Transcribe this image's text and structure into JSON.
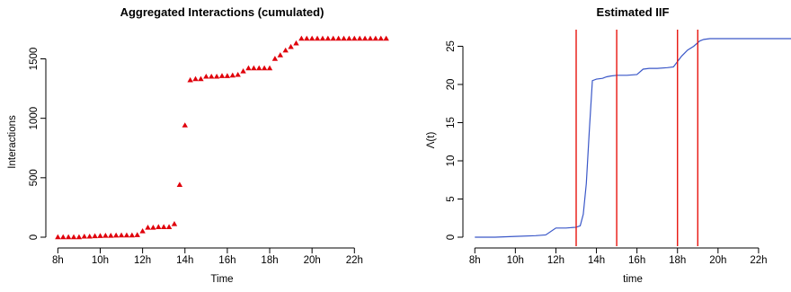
{
  "chart_data": [
    {
      "type": "scatter",
      "title": "Aggregated Interactions (cumulated)",
      "xlabel": "Time",
      "ylabel": "Interactions",
      "xlim": [
        7.9,
        23.6
      ],
      "ylim": [
        0,
        1670
      ],
      "x_ticks": [
        {
          "value": 8,
          "label": "8h"
        },
        {
          "value": 10,
          "label": "10h"
        },
        {
          "value": 12,
          "label": "12h"
        },
        {
          "value": 14,
          "label": "14h"
        },
        {
          "value": 16,
          "label": "16h"
        },
        {
          "value": 18,
          "label": "18h"
        },
        {
          "value": 20,
          "label": "20h"
        },
        {
          "value": 22,
          "label": "22h"
        }
      ],
      "y_ticks": [
        {
          "value": 0,
          "label": "0"
        },
        {
          "value": 500,
          "label": "500"
        },
        {
          "value": 1000,
          "label": "1000"
        },
        {
          "value": 1500,
          "label": "1500"
        }
      ],
      "marker_color": "#e0000b",
      "series": [
        {
          "x": [
            8.0,
            8.25,
            8.5,
            8.75,
            9.0,
            9.25,
            9.5,
            9.75,
            10.0,
            10.25,
            10.5,
            10.75,
            11.0,
            11.25,
            11.5,
            11.75,
            12.0,
            12.25,
            12.5,
            12.75,
            13.0,
            13.25,
            13.5,
            13.75,
            14.0,
            14.25,
            14.5,
            14.75,
            15.0,
            15.25,
            15.5,
            15.75,
            16.0,
            16.25,
            16.5,
            16.75,
            17.0,
            17.25,
            17.5,
            17.75,
            18.0,
            18.25,
            18.5,
            18.75,
            19.0,
            19.25,
            19.5,
            19.75,
            20.0,
            20.25,
            20.5,
            20.75,
            21.0,
            21.25,
            21.5,
            21.75,
            22.0,
            22.25,
            22.5,
            22.75,
            23.0,
            23.25,
            23.5
          ],
          "y": [
            0,
            0,
            0,
            0,
            0,
            5,
            5,
            8,
            10,
            12,
            12,
            14,
            15,
            15,
            15,
            18,
            50,
            80,
            80,
            85,
            85,
            85,
            110,
            440,
            940,
            1320,
            1330,
            1330,
            1350,
            1350,
            1350,
            1355,
            1355,
            1360,
            1365,
            1395,
            1420,
            1420,
            1420,
            1420,
            1420,
            1500,
            1530,
            1570,
            1600,
            1630,
            1670,
            1670,
            1670,
            1670,
            1670,
            1670,
            1670,
            1670,
            1670,
            1670,
            1670,
            1670,
            1670,
            1670,
            1670,
            1670,
            1670
          ]
        }
      ]
    },
    {
      "type": "line",
      "title": "Estimated IIF",
      "xlabel": "time",
      "ylabel": "Λ(t)",
      "xlim": [
        7.9,
        23.6
      ],
      "ylim": [
        0,
        26
      ],
      "x_ticks": [
        {
          "value": 8,
          "label": "8h"
        },
        {
          "value": 10,
          "label": "10h"
        },
        {
          "value": 12,
          "label": "12h"
        },
        {
          "value": 14,
          "label": "14h"
        },
        {
          "value": 16,
          "label": "16h"
        },
        {
          "value": 18,
          "label": "18h"
        },
        {
          "value": 20,
          "label": "20h"
        },
        {
          "value": 22,
          "label": "22h"
        }
      ],
      "y_ticks": [
        {
          "value": 0,
          "label": "0"
        },
        {
          "value": 5,
          "label": "5"
        },
        {
          "value": 10,
          "label": "10"
        },
        {
          "value": 15,
          "label": "15"
        },
        {
          "value": 20,
          "label": "20"
        },
        {
          "value": 25,
          "label": "25"
        }
      ],
      "line_color": "#3a57c8",
      "vline_color": "#e8150e",
      "vlines": [
        13,
        15,
        18,
        19
      ],
      "series": [
        {
          "x": [
            8.0,
            9.0,
            10.0,
            11.0,
            11.5,
            12.0,
            12.5,
            13.0,
            13.2,
            13.35,
            13.5,
            13.65,
            13.8,
            14.0,
            14.3,
            14.5,
            14.7,
            15.0,
            15.5,
            16.0,
            16.3,
            16.6,
            17.0,
            17.5,
            17.8,
            18.0,
            18.2,
            18.5,
            18.8,
            19.1,
            19.3,
            19.6,
            20.0,
            21.0,
            22.0,
            23.0,
            23.6
          ],
          "y": [
            0.0,
            0.0,
            0.1,
            0.2,
            0.3,
            1.2,
            1.2,
            1.3,
            1.5,
            3.0,
            7.0,
            14.0,
            20.5,
            20.7,
            20.8,
            21.0,
            21.1,
            21.2,
            21.2,
            21.3,
            22.0,
            22.1,
            22.1,
            22.2,
            22.3,
            23.0,
            23.7,
            24.5,
            25.0,
            25.7,
            25.9,
            26.0,
            26.0,
            26.0,
            26.0,
            26.0,
            26.0
          ]
        }
      ]
    }
  ]
}
